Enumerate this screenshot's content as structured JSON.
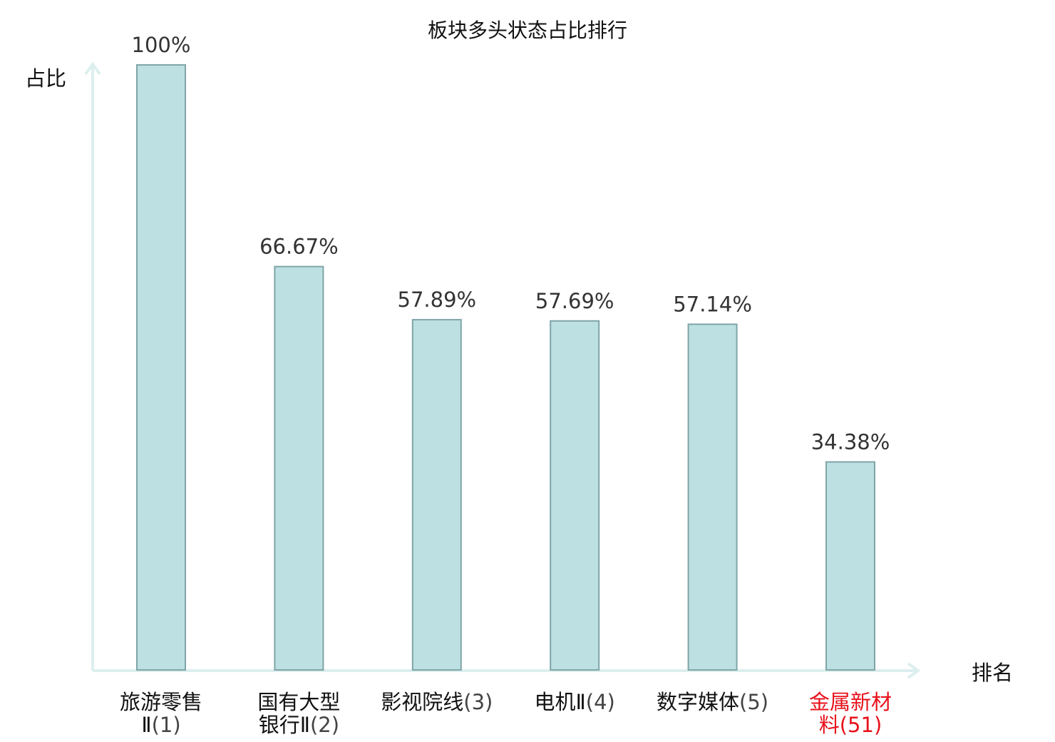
{
  "chart_data": {
    "type": "bar",
    "title": "板块多头状态占比排行",
    "ylabel": "占比",
    "xlabel": "排名",
    "ylim": [
      0,
      100
    ],
    "grid": false,
    "categories": [
      {
        "name_line1": "旅游零售",
        "name_line2": "Ⅱ",
        "rank": "(1)",
        "highlight": false
      },
      {
        "name_line1": "国有大型",
        "name_line2": "银行Ⅱ",
        "rank": "(2)",
        "highlight": false
      },
      {
        "name_line1": "影视院线",
        "name_line2": "",
        "rank": "(3)",
        "highlight": false
      },
      {
        "name_line1": "电机Ⅱ",
        "name_line2": "",
        "rank": "(4)",
        "highlight": false
      },
      {
        "name_line1": "数字媒体",
        "name_line2": "",
        "rank": "(5)",
        "highlight": false
      },
      {
        "name_line1": "金属新材",
        "name_line2": "料",
        "rank": "(51)",
        "highlight": true
      }
    ],
    "values": [
      100,
      66.67,
      57.89,
      57.69,
      57.14,
      34.38
    ],
    "value_labels": [
      "100%",
      "66.67%",
      "57.89%",
      "57.69%",
      "57.14%",
      "34.38%"
    ],
    "colors": {
      "bar": "#bde0e2",
      "bar_border": "#7fa5a8",
      "axis": "#dcefee",
      "highlight_text": "#e8121b"
    }
  }
}
